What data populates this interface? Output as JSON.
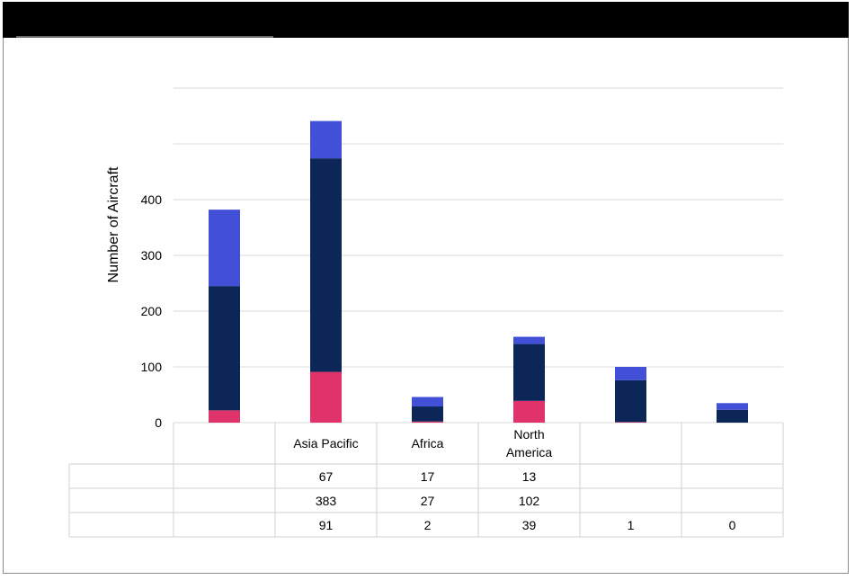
{
  "chart_data": {
    "type": "bar",
    "stacked": true,
    "title": "",
    "ylabel": "Number of Aircraft",
    "ylim": [
      0,
      600
    ],
    "yticks": [
      "0",
      "100",
      "200",
      "300",
      "400"
    ],
    "grid": true,
    "categories": [
      "",
      "Asia Pacific",
      "Africa",
      "North America",
      "",
      ""
    ],
    "series": [
      {
        "name": "",
        "color": "#e0336a",
        "values": [
          22,
          91,
          2,
          39,
          1,
          0
        ]
      },
      {
        "name": "",
        "color": "#0c2757",
        "values": [
          223,
          383,
          27,
          102,
          75,
          23
        ]
      },
      {
        "name": "",
        "color": "#4250d8",
        "values": [
          137,
          67,
          17,
          13,
          24,
          12
        ]
      }
    ],
    "table": {
      "rows": [
        {
          "cells": [
            "",
            "67",
            "17",
            "13",
            "",
            ""
          ]
        },
        {
          "cells": [
            "",
            "383",
            "27",
            "102",
            "",
            ""
          ]
        },
        {
          "cells": [
            "",
            "91",
            "2",
            "39",
            "1",
            "0"
          ]
        }
      ]
    }
  }
}
